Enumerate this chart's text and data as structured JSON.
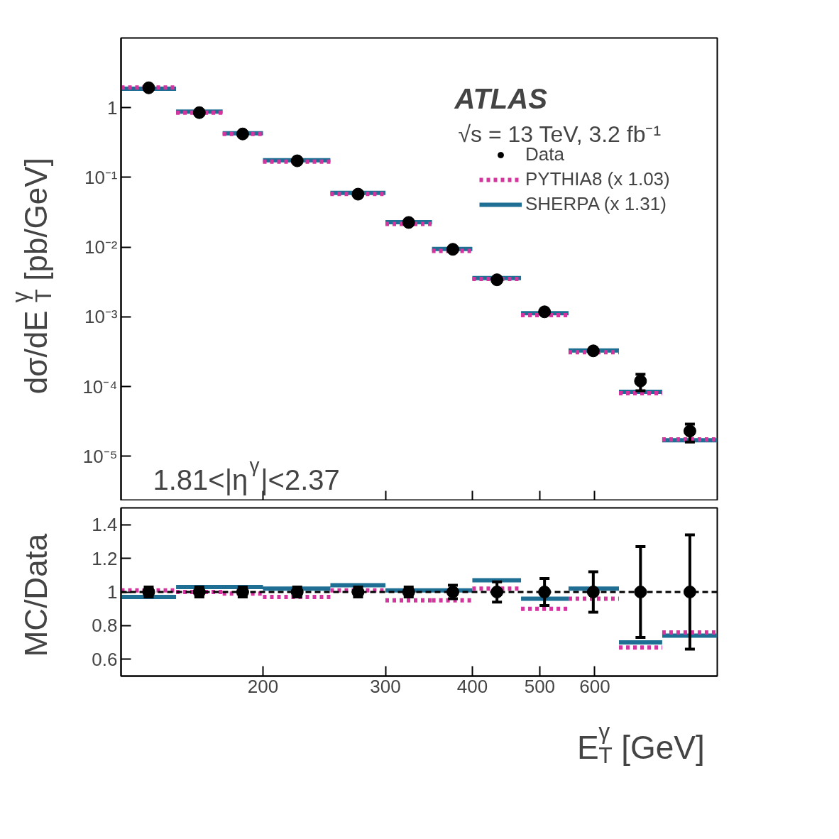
{
  "chart_data": [
    {
      "type": "scatter",
      "ylabel": "dσ/dE$_{T}$$^{γ}$ [pb/GeV]",
      "log": "xy",
      "xlim": [
        125,
        900
      ],
      "xticks": [
        200,
        300,
        400,
        500,
        600
      ],
      "ylim": [
        2.3e-06,
        10
      ],
      "yticks": [
        {
          "value": 1e-05,
          "label": "10⁻⁵"
        },
        {
          "value": 0.0001,
          "label": "10⁻⁴"
        },
        {
          "value": 0.001,
          "label": "10⁻³"
        },
        {
          "value": 0.01,
          "label": "10⁻²"
        },
        {
          "value": 0.1,
          "label": "10⁻¹"
        },
        1
      ],
      "tick_labels": "y",
      "legend": "top right",
      "grid": false,
      "annotations": [
        "ATLAS",
        "√s = 13 TeV, 3.2 fb⁻¹",
        "1.81<|η$^{γ}$|<2.37"
      ],
      "x": [
        137,
        162,
        187,
        224,
        274,
        324,
        375,
        434,
        508,
        597,
        698,
        822
      ],
      "series": [
        {
          "name": "Data",
          "color": "#000000",
          "marker": "circle",
          "values": [
            1.93,
            0.85,
            0.42,
            0.173,
            0.0575,
            0.0226,
            0.0093,
            0.0034,
            0.00118,
            0.000325,
            0.00012,
            2.3e-05
          ],
          "errors": [
            null,
            null,
            null,
            null,
            null,
            null,
            null,
            null,
            null,
            null,
            [
              8.7e-05,
              0.00015
            ],
            [
              1.6e-05,
              2.9e-05
            ]
          ]
        },
        {
          "name": "PYTHIA8 (x 1.03)",
          "type": "line",
          "color": "#d4349e",
          "marker": "none",
          "line_style": "dotted",
          "x": [
            125,
            150,
            null,
            150,
            175,
            null,
            175,
            200,
            null,
            200,
            250,
            null,
            250,
            300,
            null,
            300,
            350,
            null,
            350,
            400,
            null,
            400,
            470,
            null,
            470,
            550,
            null,
            550,
            650,
            null,
            650,
            750,
            null,
            750,
            900
          ],
          "values": [
            1.95,
            1.95,
            null,
            0.85,
            0.85,
            null,
            0.42,
            0.42,
            null,
            0.168,
            0.168,
            null,
            0.058,
            0.058,
            null,
            0.0215,
            0.0215,
            null,
            0.0088,
            0.0088,
            null,
            0.0035,
            0.0035,
            null,
            0.00106,
            0.00106,
            null,
            0.00031,
            0.00031,
            null,
            8e-05,
            8e-05,
            null,
            1.75e-05,
            1.75e-05
          ]
        },
        {
          "name": "SHERPA (x 1.31)",
          "type": "line",
          "color": "#1f6e94",
          "marker": "none",
          "line_style": "solid",
          "x": [
            125,
            150,
            null,
            150,
            175,
            null,
            175,
            200,
            null,
            200,
            250,
            null,
            250,
            300,
            null,
            300,
            350,
            null,
            350,
            400,
            null,
            400,
            470,
            null,
            470,
            550,
            null,
            550,
            650,
            null,
            650,
            750,
            null,
            750,
            900
          ],
          "values": [
            1.87,
            1.87,
            null,
            0.88,
            0.88,
            null,
            0.43,
            0.43,
            null,
            0.176,
            0.176,
            null,
            0.06,
            0.06,
            null,
            0.0228,
            0.0228,
            null,
            0.0094,
            0.0094,
            null,
            0.0036,
            0.0036,
            null,
            0.00113,
            0.00113,
            null,
            0.00033,
            0.00033,
            null,
            8.4e-05,
            8.4e-05,
            null,
            1.7e-05,
            1.7e-05
          ]
        }
      ]
    },
    {
      "type": "scatter",
      "ylabel": "MC/Data",
      "xlabel": "E$_{T}$$^{γ}$ [GeV]",
      "log": "x",
      "xlim": [
        125,
        900
      ],
      "xticks": [
        200,
        300,
        400,
        500,
        600
      ],
      "ylim": [
        0.5,
        1.5
      ],
      "yticks": [
        0.6,
        0.8,
        1,
        1.2,
        1.4
      ],
      "grid": false,
      "ref_lines": [
        {
          "axis": "y",
          "value": 1,
          "color": "#000000",
          "line_style": "dashed"
        }
      ],
      "x": [
        137,
        162,
        187,
        224,
        274,
        324,
        375,
        434,
        508,
        597,
        698,
        822
      ],
      "series": [
        {
          "color": "#000000",
          "marker": "circle",
          "values": [
            1,
            1,
            1,
            1,
            1,
            1,
            1,
            1,
            1,
            1,
            1,
            1
          ],
          "errors": [
            0.03,
            0.03,
            0.03,
            0.03,
            0.03,
            0.03,
            0.04,
            0.06,
            0.08,
            0.12,
            0.27,
            0.34
          ]
        },
        {
          "type": "line",
          "color": "#d4349e",
          "marker": "none",
          "line_style": "dotted",
          "x": [
            125,
            150,
            null,
            150,
            175,
            null,
            175,
            200,
            null,
            200,
            250,
            null,
            250,
            300,
            null,
            300,
            350,
            null,
            350,
            400,
            null,
            400,
            470,
            null,
            470,
            550,
            null,
            550,
            650,
            null,
            650,
            750,
            null,
            750,
            900
          ],
          "values": [
            1.01,
            1.01,
            null,
            1.0,
            1.0,
            null,
            0.99,
            0.99,
            null,
            0.97,
            0.97,
            null,
            1.01,
            1.01,
            null,
            0.95,
            0.95,
            null,
            0.95,
            0.95,
            null,
            1.02,
            1.02,
            null,
            0.9,
            0.9,
            null,
            0.96,
            0.96,
            null,
            0.67,
            0.67,
            null,
            0.76,
            0.76
          ]
        },
        {
          "type": "line",
          "color": "#1f6e94",
          "marker": "none",
          "line_style": "solid",
          "x": [
            125,
            150,
            null,
            150,
            175,
            null,
            175,
            200,
            null,
            200,
            250,
            null,
            250,
            300,
            null,
            300,
            350,
            null,
            350,
            400,
            null,
            400,
            470,
            null,
            470,
            550,
            null,
            550,
            650,
            null,
            650,
            750,
            null,
            750,
            900
          ],
          "values": [
            0.97,
            0.97,
            null,
            1.03,
            1.03,
            null,
            1.03,
            1.03,
            null,
            1.02,
            1.02,
            null,
            1.04,
            1.04,
            null,
            1.01,
            1.01,
            null,
            1.01,
            1.01,
            null,
            1.07,
            1.07,
            null,
            0.96,
            0.96,
            null,
            1.02,
            1.02,
            null,
            0.7,
            0.7,
            null,
            0.74,
            0.74
          ]
        }
      ]
    }
  ]
}
